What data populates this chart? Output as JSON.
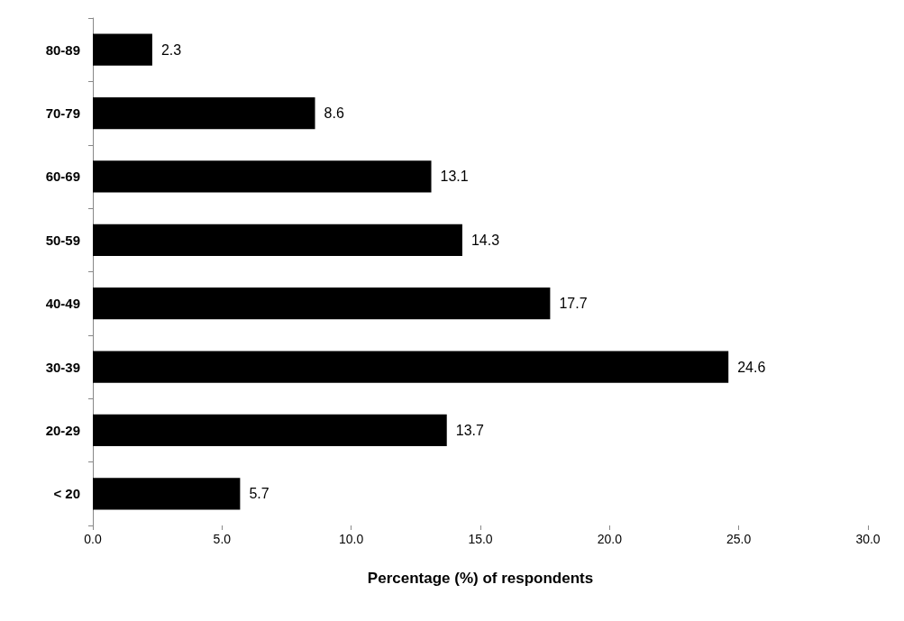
{
  "chart_data": {
    "type": "bar",
    "orientation": "horizontal",
    "xlabel": "Percentage (%) of respondents",
    "categories": [
      "80-89",
      "70-79",
      "60-69",
      "50-59",
      "40-49",
      "30-39",
      "20-29",
      "< 20"
    ],
    "values": [
      2.3,
      8.6,
      13.1,
      14.3,
      17.7,
      24.6,
      13.7,
      5.7
    ],
    "color": "#000000",
    "xlim": [
      0,
      30
    ],
    "xticks": [
      {
        "value": 0,
        "label": "0.0"
      },
      {
        "value": 5,
        "label": "5.0"
      },
      {
        "value": 10,
        "label": "10.0"
      },
      {
        "value": 15,
        "label": "15.0"
      },
      {
        "value": 20,
        "label": "20.0"
      },
      {
        "value": 25,
        "label": "25.0"
      },
      {
        "value": 30,
        "label": "30.0"
      }
    ],
    "data_labels": true,
    "grid": false
  }
}
